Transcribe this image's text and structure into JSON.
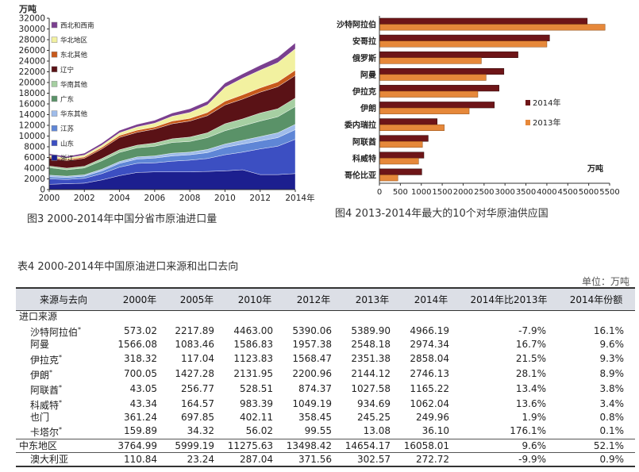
{
  "fig3": {
    "caption": "图3   2000-2014年中国分省市原油进口量",
    "chart_data": {
      "type": "area",
      "stacked": true,
      "ylabel": "万吨",
      "x": [
        2000,
        2001,
        2002,
        2003,
        2004,
        2005,
        2006,
        2007,
        2008,
        2009,
        2010,
        2011,
        2012,
        2013,
        2014
      ],
      "x_tick_labels": [
        "2000",
        "2002",
        "2004",
        "2006",
        "2008",
        "2010",
        "2012",
        "2014年"
      ],
      "ylim": [
        0,
        32000
      ],
      "y_ticks": [
        0,
        2000,
        4000,
        6000,
        8000,
        10000,
        12000,
        14000,
        16000,
        18000,
        20000,
        22000,
        24000,
        26000,
        28000,
        30000,
        32000
      ],
      "legend_position": "top-left",
      "series": [
        {
          "name": "浙江",
          "color": "#1c1f8f",
          "values": [
            1000,
            1100,
            1200,
            1800,
            2600,
            3200,
            3300,
            3300,
            3300,
            3400,
            3500,
            3700,
            2800,
            2800,
            3000
          ]
        },
        {
          "name": "山东",
          "color": "#3c4fc2",
          "values": [
            1000,
            800,
            900,
            1200,
            1600,
            1700,
            1700,
            2000,
            2200,
            2400,
            3000,
            3300,
            4800,
            5300,
            6400
          ]
        },
        {
          "name": "江苏",
          "color": "#5f86d6",
          "values": [
            400,
            350,
            400,
            500,
            700,
            800,
            900,
            1000,
            1000,
            1100,
            1400,
            1500,
            1500,
            1600,
            1800
          ]
        },
        {
          "name": "华东其他",
          "color": "#9fbcea",
          "values": [
            300,
            250,
            250,
            300,
            350,
            400,
            400,
            500,
            500,
            600,
            600,
            700,
            800,
            900,
            1000
          ]
        },
        {
          "name": "广东",
          "color": "#5a9268",
          "values": [
            1400,
            1200,
            1300,
            1600,
            1700,
            1700,
            1800,
            2000,
            2000,
            2200,
            2500,
            2700,
            2900,
            3000,
            3300
          ]
        },
        {
          "name": "华南其他",
          "color": "#a6cfa2",
          "values": [
            300,
            300,
            300,
            400,
            500,
            500,
            600,
            700,
            800,
            900,
            1300,
            1300,
            1500,
            1500,
            1600
          ]
        },
        {
          "name": "辽宁",
          "color": "#5a1216",
          "values": [
            1500,
            1400,
            1500,
            1800,
            2300,
            2400,
            2600,
            2800,
            3000,
            3200,
            3500,
            3700,
            3900,
            4100,
            4200
          ]
        },
        {
          "name": "东北其他",
          "color": "#c7591b",
          "values": [
            200,
            200,
            250,
            300,
            350,
            400,
            400,
            500,
            500,
            600,
            700,
            800,
            800,
            900,
            1000
          ]
        },
        {
          "name": "华北地区",
          "color": "#f2f1a0",
          "values": [
            300,
            300,
            350,
            400,
            500,
            600,
            700,
            900,
            1100,
            1400,
            2600,
            3100,
            3300,
            3600,
            4000
          ]
        },
        {
          "name": "西北和西南",
          "color": "#7a3f8f",
          "values": [
            300,
            300,
            350,
            400,
            450,
            500,
            550,
            600,
            700,
            700,
            800,
            800,
            900,
            1000,
            1100
          ]
        }
      ]
    }
  },
  "fig4": {
    "caption": "图4   2013-2014年最大的10个对华原油供应国",
    "chart_data": {
      "type": "bar",
      "orientation": "horizontal",
      "unit_label": "万吨",
      "xlim": [
        0,
        5500
      ],
      "x_ticks": [
        0,
        500,
        1000,
        1500,
        2000,
        2500,
        3000,
        3500,
        4000,
        4500,
        5000,
        5500
      ],
      "legend_position": "right",
      "categories": [
        "沙特阿拉伯",
        "安哥拉",
        "俄罗斯",
        "阿曼",
        "伊拉克",
        "伊朗",
        "委内瑞拉",
        "阿联酋",
        "科威特",
        "哥伦比亚"
      ],
      "series": [
        {
          "name": "2014年",
          "color": "#6e1518",
          "values": [
            4966.19,
            4065,
            3311,
            2974.34,
            2858.04,
            2746.13,
            1379,
            1165.22,
            1062.04,
            1012
          ]
        },
        {
          "name": "2013年",
          "color": "#e6883a",
          "values": [
            5389.9,
            4001,
            2435,
            2548.18,
            2351.38,
            2144.12,
            1548,
            1027.58,
            934.69,
            440
          ]
        }
      ]
    }
  },
  "table": {
    "title": "表4   2000-2014年中国原油进口来源和出口去向",
    "unit": "单位：万吨",
    "headers": [
      "来源与去向",
      "2000年",
      "2005年",
      "2010年",
      "2012年",
      "2013年",
      "2014年",
      "2014年比2013年",
      "2014年份额"
    ],
    "section_label": "进口来源",
    "rows": [
      {
        "name": "沙特阿拉伯",
        "fn": "*",
        "cells": [
          "573.02",
          "2217.89",
          "4463.00",
          "5390.06",
          "5389.90",
          "4966.19",
          "-7.9%",
          "16.1%"
        ]
      },
      {
        "name": "阿曼",
        "fn": "",
        "cells": [
          "1566.08",
          "1083.46",
          "1586.83",
          "1957.38",
          "2548.18",
          "2974.34",
          "16.7%",
          "9.6%"
        ]
      },
      {
        "name": "伊拉克",
        "fn": "*",
        "cells": [
          "318.32",
          "117.04",
          "1123.83",
          "1568.47",
          "2351.38",
          "2858.04",
          "21.5%",
          "9.3%"
        ]
      },
      {
        "name": "伊朗",
        "fn": "*",
        "cells": [
          "700.05",
          "1427.28",
          "2131.95",
          "2200.96",
          "2144.12",
          "2746.13",
          "28.1%",
          "8.9%"
        ]
      },
      {
        "name": "阿联酋",
        "fn": "*",
        "cells": [
          "43.05",
          "256.77",
          "528.51",
          "874.37",
          "1027.58",
          "1165.22",
          "13.4%",
          "3.8%"
        ]
      },
      {
        "name": "科威特",
        "fn": "*",
        "cells": [
          "43.34",
          "164.57",
          "983.39",
          "1049.19",
          "934.69",
          "1062.04",
          "13.6%",
          "3.4%"
        ]
      },
      {
        "name": "也门",
        "fn": "",
        "cells": [
          "361.24",
          "697.85",
          "402.11",
          "358.45",
          "245.25",
          "249.96",
          "1.9%",
          "0.8%"
        ]
      },
      {
        "name": "卡塔尔",
        "fn": "*",
        "cells": [
          "159.89",
          "34.32",
          "56.02",
          "99.55",
          "13.08",
          "36.10",
          "176.1%",
          "0.1%"
        ]
      }
    ],
    "region_row": {
      "name": "中东地区",
      "cells": [
        "3764.99",
        "5999.19",
        "11275.63",
        "13498.42",
        "14654.17",
        "16058.01",
        "9.6%",
        "52.1%"
      ]
    },
    "last_row": {
      "name": "澳大利亚",
      "cells": [
        "110.84",
        "23.24",
        "287.04",
        "371.56",
        "302.57",
        "272.72",
        "-9.9%",
        "0.9%"
      ]
    }
  }
}
